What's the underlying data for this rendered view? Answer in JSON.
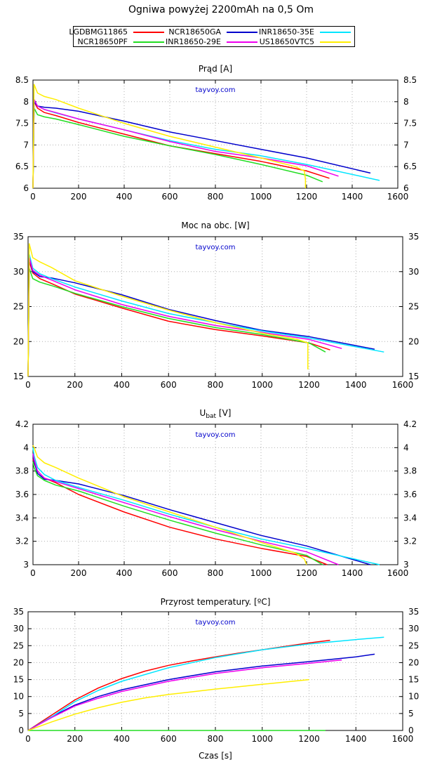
{
  "title": "Ogniwa powyżej 2200mAh na 0,5 Om",
  "watermark": "tayvoy.com",
  "legend": [
    {
      "name": "LGDBMG11865",
      "color": "#ff0000"
    },
    {
      "name": "NCR18650GA",
      "color": "#0000cc"
    },
    {
      "name": "INR18650-35E",
      "color": "#00e5ff"
    },
    {
      "name": "NCR18650PF",
      "color": "#22dd22"
    },
    {
      "name": "INR18650-29E",
      "color": "#ee00ee"
    },
    {
      "name": "US18650VTC5",
      "color": "#ffee00"
    }
  ],
  "chart_data": [
    {
      "type": "line",
      "title": "Prąd [A]",
      "xlabel": "",
      "xlim": [
        0,
        1600
      ],
      "ylim": [
        6,
        8.5
      ],
      "xticks": [
        "0",
        "200",
        "400",
        "600",
        "800",
        "1000",
        "1200",
        "1400",
        "1600"
      ],
      "yticks": [
        "6",
        "6.5",
        "7",
        "7.5",
        "8",
        "8.5"
      ],
      "grid": true,
      "series": [
        {
          "name": "LGDBMG11865",
          "x": [
            0,
            5,
            20,
            50,
            100,
            200,
            400,
            600,
            800,
            1000,
            1200,
            1300
          ],
          "y": [
            6,
            8.0,
            7.85,
            7.75,
            7.68,
            7.52,
            7.25,
            6.98,
            6.8,
            6.62,
            6.4,
            6.23
          ]
        },
        {
          "name": "NCR18650GA",
          "x": [
            0,
            5,
            20,
            50,
            100,
            200,
            400,
            600,
            800,
            1000,
            1200,
            1480
          ],
          "y": [
            6,
            8.0,
            7.9,
            7.87,
            7.85,
            7.78,
            7.55,
            7.3,
            7.1,
            6.9,
            6.7,
            6.35
          ]
        },
        {
          "name": "INR18650-35E",
          "x": [
            0,
            5,
            20,
            50,
            100,
            200,
            400,
            600,
            800,
            1000,
            1200,
            1520
          ],
          "y": [
            6,
            8.05,
            7.9,
            7.82,
            7.74,
            7.6,
            7.35,
            7.1,
            6.9,
            6.75,
            6.55,
            6.18
          ]
        },
        {
          "name": "NCR18650PF",
          "x": [
            0,
            5,
            20,
            50,
            100,
            200,
            400,
            600,
            800,
            1000,
            1200,
            1270
          ],
          "y": [
            6,
            7.85,
            7.7,
            7.65,
            7.6,
            7.47,
            7.2,
            6.98,
            6.78,
            6.55,
            6.3,
            6.15
          ]
        },
        {
          "name": "INR18650-29E",
          "x": [
            0,
            5,
            20,
            50,
            100,
            200,
            400,
            600,
            800,
            1000,
            1200,
            1340
          ],
          "y": [
            6,
            8.05,
            7.9,
            7.82,
            7.75,
            7.6,
            7.35,
            7.08,
            6.85,
            6.7,
            6.52,
            6.28
          ]
        },
        {
          "name": "US18650VTC5",
          "x": [
            0,
            5,
            20,
            50,
            100,
            200,
            400,
            600,
            800,
            1000,
            1150,
            1190,
            1195,
            1195
          ],
          "y": [
            6,
            8.4,
            8.2,
            8.12,
            8.05,
            7.85,
            7.5,
            7.2,
            6.95,
            6.7,
            6.5,
            6.4,
            6.2,
            6.0
          ]
        }
      ]
    },
    {
      "type": "line",
      "title": "Moc na obc. [W]",
      "xlabel": "",
      "xlim": [
        0,
        1600
      ],
      "ylim": [
        15,
        35
      ],
      "xticks": [
        "0",
        "200",
        "400",
        "600",
        "800",
        "1000",
        "1200",
        "1400",
        "1600"
      ],
      "yticks": [
        "15",
        "20",
        "25",
        "30",
        "35"
      ],
      "grid": true,
      "series": [
        {
          "name": "LGDBMG11865",
          "x": [
            0,
            5,
            20,
            50,
            100,
            200,
            400,
            600,
            800,
            1000,
            1200,
            1290
          ],
          "y": [
            15,
            31.5,
            29.8,
            29.0,
            28.3,
            26.8,
            24.8,
            22.9,
            21.7,
            20.8,
            19.8,
            18.8
          ]
        },
        {
          "name": "NCR18650GA",
          "x": [
            0,
            5,
            20,
            50,
            100,
            200,
            400,
            600,
            800,
            1000,
            1200,
            1480
          ],
          "y": [
            15,
            32.0,
            30.0,
            29.3,
            29.1,
            28.4,
            26.7,
            24.6,
            23.0,
            21.6,
            20.7,
            18.9
          ]
        },
        {
          "name": "INR18650-35E",
          "x": [
            0,
            5,
            20,
            50,
            100,
            200,
            400,
            600,
            800,
            1000,
            1200,
            1520
          ],
          "y": [
            15,
            32.5,
            30.5,
            29.7,
            29.0,
            27.8,
            25.8,
            24.0,
            22.7,
            21.5,
            20.5,
            18.5
          ]
        },
        {
          "name": "NCR18650PF",
          "x": [
            0,
            5,
            20,
            50,
            100,
            200,
            400,
            600,
            800,
            1000,
            1200,
            1270
          ],
          "y": [
            15,
            30.5,
            29.0,
            28.5,
            28.0,
            26.9,
            25.0,
            23.3,
            22.0,
            21.0,
            19.8,
            18.5
          ]
        },
        {
          "name": "INR18650-29E",
          "x": [
            0,
            5,
            20,
            50,
            100,
            200,
            400,
            600,
            800,
            1000,
            1200,
            1340
          ],
          "y": [
            15,
            32.0,
            30.2,
            29.5,
            28.8,
            27.4,
            25.3,
            23.6,
            22.3,
            21.3,
            20.3,
            19.0
          ]
        },
        {
          "name": "US18650VTC5",
          "x": [
            0,
            5,
            20,
            50,
            100,
            200,
            400,
            600,
            800,
            1000,
            1150,
            1195,
            1195
          ],
          "y": [
            15,
            34.0,
            32.0,
            31.4,
            30.6,
            28.7,
            26.5,
            24.5,
            22.7,
            21.2,
            20.3,
            19.8,
            16.0
          ]
        }
      ]
    },
    {
      "type": "line",
      "title": "U",
      "title_sub": "bat",
      "title_suffix": " [V]",
      "xlabel": "",
      "xlim": [
        0,
        1600
      ],
      "ylim": [
        3,
        4.2
      ],
      "xticks": [
        "0",
        "200",
        "400",
        "600",
        "800",
        "1000",
        "1200",
        "1400",
        "1600"
      ],
      "yticks": [
        "3",
        "3.2",
        "3.4",
        "3.6",
        "3.8",
        "4",
        "4.2"
      ],
      "grid": true,
      "series": [
        {
          "name": "LGDBMG11865",
          "x": [
            0,
            5,
            20,
            50,
            100,
            200,
            400,
            600,
            800,
            1000,
            1200,
            1290
          ],
          "y": [
            3.9,
            3.87,
            3.8,
            3.74,
            3.7,
            3.6,
            3.45,
            3.32,
            3.22,
            3.14,
            3.07,
            3.0
          ]
        },
        {
          "name": "NCR18650GA",
          "x": [
            0,
            5,
            20,
            50,
            100,
            200,
            400,
            600,
            800,
            1000,
            1200,
            1480
          ],
          "y": [
            3.94,
            3.88,
            3.78,
            3.73,
            3.72,
            3.69,
            3.59,
            3.47,
            3.36,
            3.25,
            3.16,
            3.0
          ]
        },
        {
          "name": "INR18650-35E",
          "x": [
            0,
            5,
            20,
            50,
            100,
            200,
            400,
            600,
            800,
            1000,
            1200,
            1520
          ],
          "y": [
            4.0,
            3.93,
            3.83,
            3.77,
            3.72,
            3.66,
            3.55,
            3.43,
            3.32,
            3.22,
            3.14,
            3.0
          ]
        },
        {
          "name": "NCR18650PF",
          "x": [
            0,
            5,
            20,
            50,
            100,
            200,
            400,
            600,
            800,
            1000,
            1200,
            1270
          ],
          "y": [
            3.88,
            3.83,
            3.76,
            3.72,
            3.68,
            3.63,
            3.5,
            3.38,
            3.27,
            3.17,
            3.08,
            3.0
          ]
        },
        {
          "name": "INR18650-29E",
          "x": [
            0,
            5,
            20,
            50,
            100,
            200,
            400,
            600,
            800,
            1000,
            1200,
            1340
          ],
          "y": [
            3.95,
            3.9,
            3.8,
            3.74,
            3.71,
            3.65,
            3.53,
            3.41,
            3.3,
            3.2,
            3.11,
            3.0
          ]
        },
        {
          "name": "US18650VTC5",
          "x": [
            0,
            5,
            20,
            50,
            100,
            200,
            400,
            600,
            800,
            1000,
            1150,
            1190,
            1200
          ],
          "y": [
            4.02,
            4.0,
            3.92,
            3.87,
            3.83,
            3.74,
            3.58,
            3.45,
            3.32,
            3.19,
            3.1,
            3.05,
            3.0
          ]
        }
      ]
    },
    {
      "type": "line",
      "title": "Przyrost temperatury. [ºC]",
      "xlabel": "Czas [s]",
      "xlim": [
        0,
        1600
      ],
      "ylim": [
        0,
        35
      ],
      "xticks": [
        "0",
        "200",
        "400",
        "600",
        "800",
        "1000",
        "1200",
        "1400",
        "1600"
      ],
      "yticks": [
        "0",
        "5",
        "10",
        "15",
        "20",
        "25",
        "30",
        "35"
      ],
      "grid": true,
      "series": [
        {
          "name": "LGDBMG11865",
          "x": [
            0,
            100,
            200,
            300,
            400,
            500,
            600,
            700,
            800,
            900,
            1000,
            1100,
            1200,
            1290
          ],
          "y": [
            0,
            4.5,
            9.0,
            12.5,
            15.3,
            17.5,
            19.2,
            20.5,
            21.7,
            22.8,
            23.8,
            24.8,
            25.8,
            26.6
          ]
        },
        {
          "name": "NCR18650GA",
          "x": [
            0,
            100,
            200,
            300,
            400,
            600,
            800,
            1000,
            1200,
            1400,
            1480
          ],
          "y": [
            0,
            4.0,
            7.5,
            10.0,
            12.0,
            15.0,
            17.3,
            19.0,
            20.3,
            21.7,
            22.5
          ]
        },
        {
          "name": "INR18650-35E",
          "x": [
            0,
            100,
            200,
            300,
            400,
            600,
            800,
            1000,
            1200,
            1400,
            1520
          ],
          "y": [
            0,
            4.0,
            8.5,
            11.8,
            14.5,
            18.5,
            21.5,
            23.8,
            25.5,
            26.8,
            27.5
          ]
        },
        {
          "name": "NCR18650PF",
          "x": [
            0,
            1270
          ],
          "y": [
            0,
            0
          ]
        },
        {
          "name": "INR18650-29E",
          "x": [
            0,
            100,
            200,
            300,
            400,
            600,
            800,
            1000,
            1200,
            1340
          ],
          "y": [
            0,
            3.8,
            7.2,
            9.5,
            11.5,
            14.5,
            16.8,
            18.5,
            19.8,
            20.8
          ]
        },
        {
          "name": "US18650VTC5",
          "x": [
            0,
            100,
            200,
            300,
            400,
            500,
            600,
            700,
            800,
            900,
            1000,
            1100,
            1200
          ],
          "y": [
            0,
            2.5,
            4.8,
            6.7,
            8.3,
            9.6,
            10.6,
            11.4,
            12.2,
            12.9,
            13.6,
            14.3,
            15.0
          ]
        }
      ]
    }
  ]
}
